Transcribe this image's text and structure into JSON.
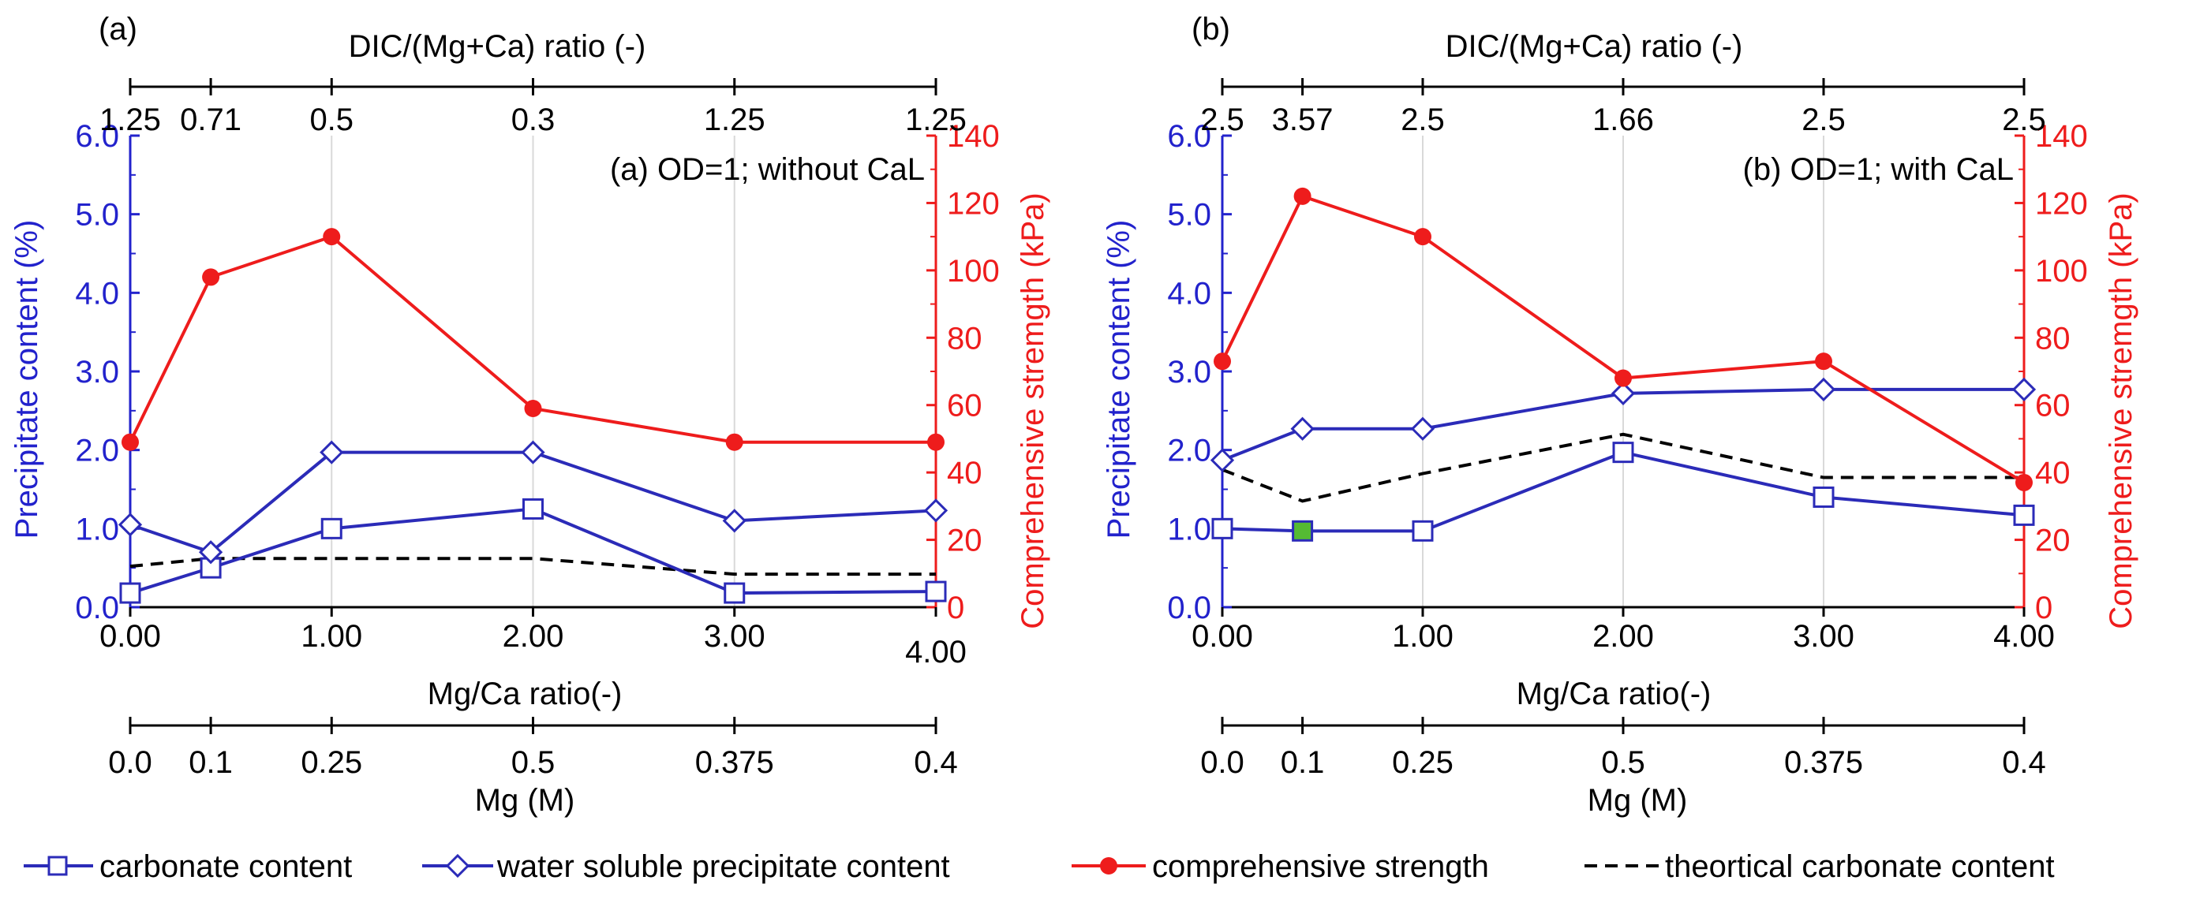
{
  "colors": {
    "carbonate": "#2b2bb8",
    "water": "#2b2bb8",
    "strength": "#ee1c1c",
    "theory": "#000000",
    "left_axis": "#2222cc",
    "right_axis": "#ee1c1c",
    "grid": "#d9d9d9",
    "axis": "#000000",
    "highlight_marker": "#55bb33"
  },
  "legend": {
    "carbonate": "carbonate content",
    "water": "water soluble precipitate content",
    "strength": "comprehensive strength",
    "theory": "theortical carbonate content"
  },
  "chart_data": [
    {
      "type": "line",
      "panel_label": "(a)",
      "annotation": "(a) OD=1; without CaL",
      "top_axis_title": "DIC/(Mg+Ca) ratio (-)",
      "top_axis_ticks": [
        "1.25",
        "0.71",
        "0.5",
        "0.3",
        "1.25",
        "1.25"
      ],
      "xlabel": "Mg/Ca ratio(-)",
      "x_ticks": [
        "0.00",
        "1.00",
        "2.00",
        "3.00",
        "4.00"
      ],
      "second_axis_title": "Mg (M)",
      "second_axis_ticks": [
        "0.0",
        "0.1",
        "0.25",
        "0.5",
        "0.375",
        "0.4"
      ],
      "ylabel_left": "Precipitate content (%)",
      "y_left_ticks": [
        "0.0",
        "1.0",
        "2.0",
        "3.0",
        "4.0",
        "5.0",
        "6.0"
      ],
      "ylim_left": [
        0,
        6
      ],
      "ylabel_right": "Comprehensive stremgth (kPa)",
      "y_right_ticks": [
        "0",
        "20",
        "40",
        "60",
        "80",
        "100",
        "120",
        "140"
      ],
      "ylim_right": [
        0,
        140
      ],
      "xlim": [
        0,
        4
      ],
      "x": [
        0,
        0.4,
        1,
        2,
        3,
        4
      ],
      "series": [
        {
          "name": "carbonate content",
          "key": "carbonate",
          "axis": "left",
          "values": [
            0.18,
            0.5,
            1.0,
            1.25,
            0.18,
            0.2
          ]
        },
        {
          "name": "water soluble precipitate content",
          "key": "water",
          "axis": "left",
          "values": [
            1.05,
            0.7,
            1.97,
            1.97,
            1.1,
            1.23
          ]
        },
        {
          "name": "comprehensive strength",
          "key": "strength",
          "axis": "right",
          "values": [
            49,
            98,
            110,
            59,
            49,
            49
          ]
        },
        {
          "name": "theortical carbonate content",
          "key": "theory",
          "axis": "left",
          "values": [
            0.52,
            0.62,
            0.62,
            0.62,
            0.42,
            0.42
          ]
        }
      ]
    },
    {
      "type": "line",
      "panel_label": "(b)",
      "annotation": "(b) OD=1; with CaL",
      "top_axis_title": "DIC/(Mg+Ca) ratio (-)",
      "top_axis_ticks": [
        "2.5",
        "3.57",
        "2.5",
        "1.66",
        "2.5",
        "2.5"
      ],
      "xlabel": "Mg/Ca ratio(-)",
      "x_ticks": [
        "0.00",
        "1.00",
        "2.00",
        "3.00",
        "4.00"
      ],
      "second_axis_title": "Mg (M)",
      "second_axis_ticks": [
        "0.0",
        "0.1",
        "0.25",
        "0.5",
        "0.375",
        "0.4"
      ],
      "ylabel_left": "Precipitate content (%)",
      "y_left_ticks": [
        "0.0",
        "1.0",
        "2.0",
        "3.0",
        "4.0",
        "5.0",
        "6.0"
      ],
      "ylim_left": [
        0,
        6
      ],
      "ylabel_right": "Comprehensive stremgth (kPa)",
      "y_right_ticks": [
        "0",
        "20",
        "40",
        "60",
        "80",
        "100",
        "120",
        "140"
      ],
      "ylim_right": [
        0,
        140
      ],
      "xlim": [
        0,
        4
      ],
      "x": [
        0,
        0.4,
        1,
        2,
        3,
        4
      ],
      "series": [
        {
          "name": "carbonate content",
          "key": "carbonate",
          "axis": "left",
          "values": [
            1.0,
            0.97,
            0.97,
            1.97,
            1.4,
            1.17
          ],
          "highlight_index": 1
        },
        {
          "name": "water soluble precipitate content",
          "key": "water",
          "axis": "left",
          "values": [
            1.87,
            2.27,
            2.27,
            2.72,
            2.77,
            2.77
          ]
        },
        {
          "name": "comprehensive strength",
          "key": "strength",
          "axis": "right",
          "values": [
            73,
            122,
            110,
            68,
            73,
            37
          ]
        },
        {
          "name": "theortical carbonate content",
          "key": "theory",
          "axis": "left",
          "values": [
            1.75,
            1.35,
            1.7,
            2.2,
            1.65,
            1.65
          ]
        }
      ]
    }
  ]
}
